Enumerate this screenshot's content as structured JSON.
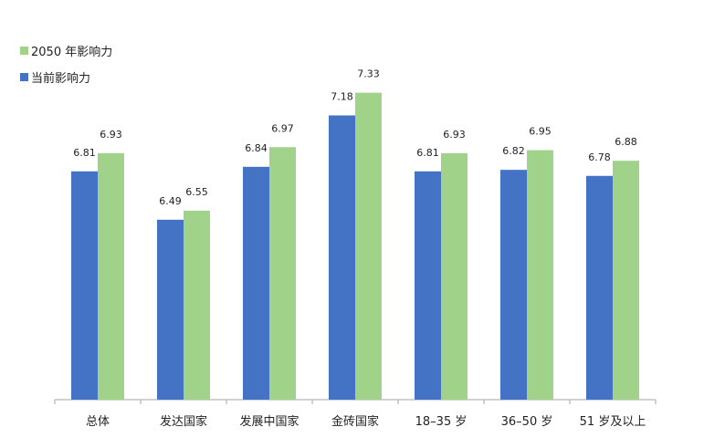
{
  "chart_data": {
    "type": "bar",
    "categories": [
      "总体",
      "发达国家",
      "发展中国家",
      "金砖国家",
      "18–35 岁",
      "36–50 岁",
      "51 岁及以上"
    ],
    "series": [
      {
        "name": "当前影响力",
        "color": "#4472C4",
        "values": [
          6.81,
          6.49,
          6.84,
          7.18,
          6.81,
          6.82,
          6.78
        ]
      },
      {
        "name": "2050 年影响力",
        "color": "#A0D28A",
        "values": [
          6.93,
          6.55,
          6.97,
          7.33,
          6.93,
          6.95,
          6.88
        ]
      }
    ],
    "ylim": [
      5.3,
      7.5
    ],
    "legend_position": "top-left",
    "grid": false,
    "data_labels": true
  }
}
